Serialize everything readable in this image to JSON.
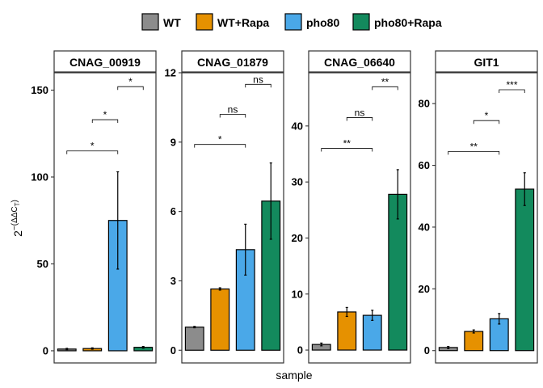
{
  "chart_data": {
    "type": "bar",
    "xlabel": "sample",
    "ylabel_base": "2",
    "ylabel_exponent": "−(ΔΔC",
    "ylabel_subscript": "T",
    "ylabel_close": ")",
    "legend": {
      "placement": "top",
      "entries": [
        {
          "name": "WT",
          "color": "#8c8c8c"
        },
        {
          "name": "WT+Rapa",
          "color": "#e69100"
        },
        {
          "name": "pho80",
          "color": "#4aa8e8"
        },
        {
          "name": "pho80+Rapa",
          "color": "#138a5d"
        }
      ]
    },
    "categories": [
      "WT",
      "WT+Rapa",
      "pho80",
      "pho80+Rapa"
    ],
    "panels": [
      {
        "title": "CNAG_00919",
        "ylim": [
          -7,
          160
        ],
        "yticks": [
          0,
          50,
          100,
          150
        ],
        "values": [
          1.0,
          1.3,
          75.0,
          2.0
        ],
        "errors": [
          0.4,
          0.4,
          28.0,
          0.5
        ],
        "comparisons": [
          {
            "from": 0,
            "to": 2,
            "y": 115,
            "label": "*"
          },
          {
            "from": 1,
            "to": 2,
            "y": 133,
            "label": "*"
          },
          {
            "from": 2,
            "to": 3,
            "y": 152,
            "label": "*"
          }
        ]
      },
      {
        "title": "CNAG_01879",
        "ylim": [
          -0.55,
          12
        ],
        "yticks": [
          0,
          3,
          6,
          9,
          12
        ],
        "values": [
          1.0,
          2.65,
          4.35,
          6.45
        ],
        "errors": [
          0.03,
          0.05,
          1.1,
          1.65
        ],
        "comparisons": [
          {
            "from": 0,
            "to": 2,
            "y": 8.9,
            "label": "*"
          },
          {
            "from": 1,
            "to": 2,
            "y": 10.2,
            "label": "ns"
          },
          {
            "from": 2,
            "to": 3,
            "y": 11.5,
            "label": "ns"
          }
        ]
      },
      {
        "title": "CNAG_06640",
        "ylim": [
          -2.3,
          49.5
        ],
        "yticks": [
          0,
          10,
          20,
          30,
          40
        ],
        "values": [
          1.0,
          6.8,
          6.2,
          27.8
        ],
        "errors": [
          0.25,
          0.8,
          0.9,
          4.4
        ],
        "comparisons": [
          {
            "from": 0,
            "to": 2,
            "y": 36,
            "label": "**"
          },
          {
            "from": 1,
            "to": 2,
            "y": 41.5,
            "label": "ns"
          },
          {
            "from": 2,
            "to": 3,
            "y": 47,
            "label": "**"
          }
        ]
      },
      {
        "title": "GIT1",
        "ylim": [
          -4,
          90
        ],
        "yticks": [
          0,
          20,
          40,
          60,
          80
        ],
        "values": [
          1.0,
          6.2,
          10.3,
          52.3
        ],
        "errors": [
          0.35,
          0.5,
          1.7,
          5.3
        ],
        "comparisons": [
          {
            "from": 0,
            "to": 2,
            "y": 64.5,
            "label": "**"
          },
          {
            "from": 1,
            "to": 2,
            "y": 74.5,
            "label": "*"
          },
          {
            "from": 2,
            "to": 3,
            "y": 84.5,
            "label": "***"
          }
        ]
      }
    ]
  }
}
